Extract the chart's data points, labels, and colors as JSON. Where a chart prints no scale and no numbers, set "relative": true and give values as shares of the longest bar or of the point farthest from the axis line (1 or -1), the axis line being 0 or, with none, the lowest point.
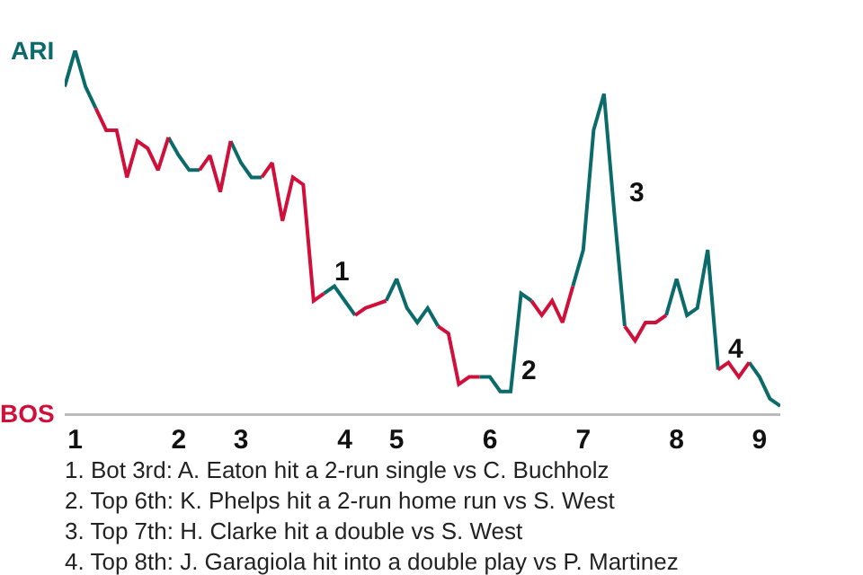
{
  "chart_data": {
    "type": "line",
    "relative": true,
    "categories": [
      null,
      "1",
      null,
      null,
      null,
      null,
      null,
      null,
      null,
      null,
      null,
      "2",
      null,
      null,
      null,
      null,
      null,
      "3",
      null,
      null,
      null,
      null,
      null,
      null,
      null,
      null,
      null,
      "4",
      null,
      null,
      null,
      null,
      "5",
      null,
      null,
      null,
      null,
      null,
      null,
      null,
      null,
      "6",
      null,
      null,
      null,
      null,
      null,
      null,
      null,
      null,
      "7",
      null,
      null,
      null,
      null,
      null,
      null,
      null,
      null,
      "8",
      null,
      null,
      null,
      null,
      null,
      null,
      null,
      "9",
      null,
      null
    ],
    "marker": "none",
    "line_style": "solid",
    "series": [
      {
        "color": "#0b6b6b",
        "values": [
          0.9,
          1,
          0.9,
          0.84,
          null,
          null,
          null,
          null,
          null,
          null,
          0.76,
          0.71,
          0.67,
          0.67,
          null,
          null,
          0.75,
          0.69,
          0.65,
          0.65,
          null,
          null,
          null,
          null,
          null,
          0.33,
          0.35,
          0.31,
          0.27,
          null,
          null,
          0.31,
          0.37,
          0.29,
          0.25,
          0.29,
          0.24,
          null,
          null,
          null,
          0.1,
          0.1,
          0.06,
          0.06,
          0.33,
          0.31,
          null,
          null,
          null,
          0.35,
          0.45,
          0.78,
          0.88,
          0.55,
          0.24,
          null,
          null,
          null,
          0.27,
          0.37,
          0.27,
          0.29,
          0.45,
          0.12,
          null,
          null,
          0.14,
          0.1,
          0.04,
          0.02
        ]
      },
      {
        "color": "#d0103a",
        "values": [
          null,
          null,
          null,
          0.84,
          0.78,
          0.78,
          0.65,
          0.75,
          0.73,
          0.67,
          0.76,
          null,
          null,
          0.67,
          0.71,
          0.61,
          0.75,
          null,
          null,
          0.65,
          0.69,
          0.53,
          0.65,
          0.63,
          0.31,
          0.33,
          null,
          null,
          0.27,
          0.29,
          0.3,
          0.31,
          null,
          null,
          null,
          null,
          0.24,
          0.22,
          0.08,
          0.1,
          0.1,
          null,
          null,
          null,
          null,
          0.31,
          0.27,
          0.31,
          0.25,
          0.35,
          null,
          null,
          null,
          null,
          0.24,
          0.2,
          0.25,
          0.25,
          0.27,
          null,
          null,
          null,
          null,
          0.12,
          0.14,
          0.1,
          0.14,
          null,
          null,
          null
        ]
      }
    ],
    "annotations": [
      "ARI",
      "BOS",
      "1",
      "2",
      "3",
      "4",
      "1. Bot 3rd: A. Eaton hit a 2-run single vs C. Buchholz",
      "2. Top 6th: K. Phelps hit a 2-run home run vs S. West",
      "3. Top 7th: H. Clarke hit a double vs S. West",
      "4. Top 8th: J. Garagiola hit into a double play vs P. Martinez"
    ]
  }
}
